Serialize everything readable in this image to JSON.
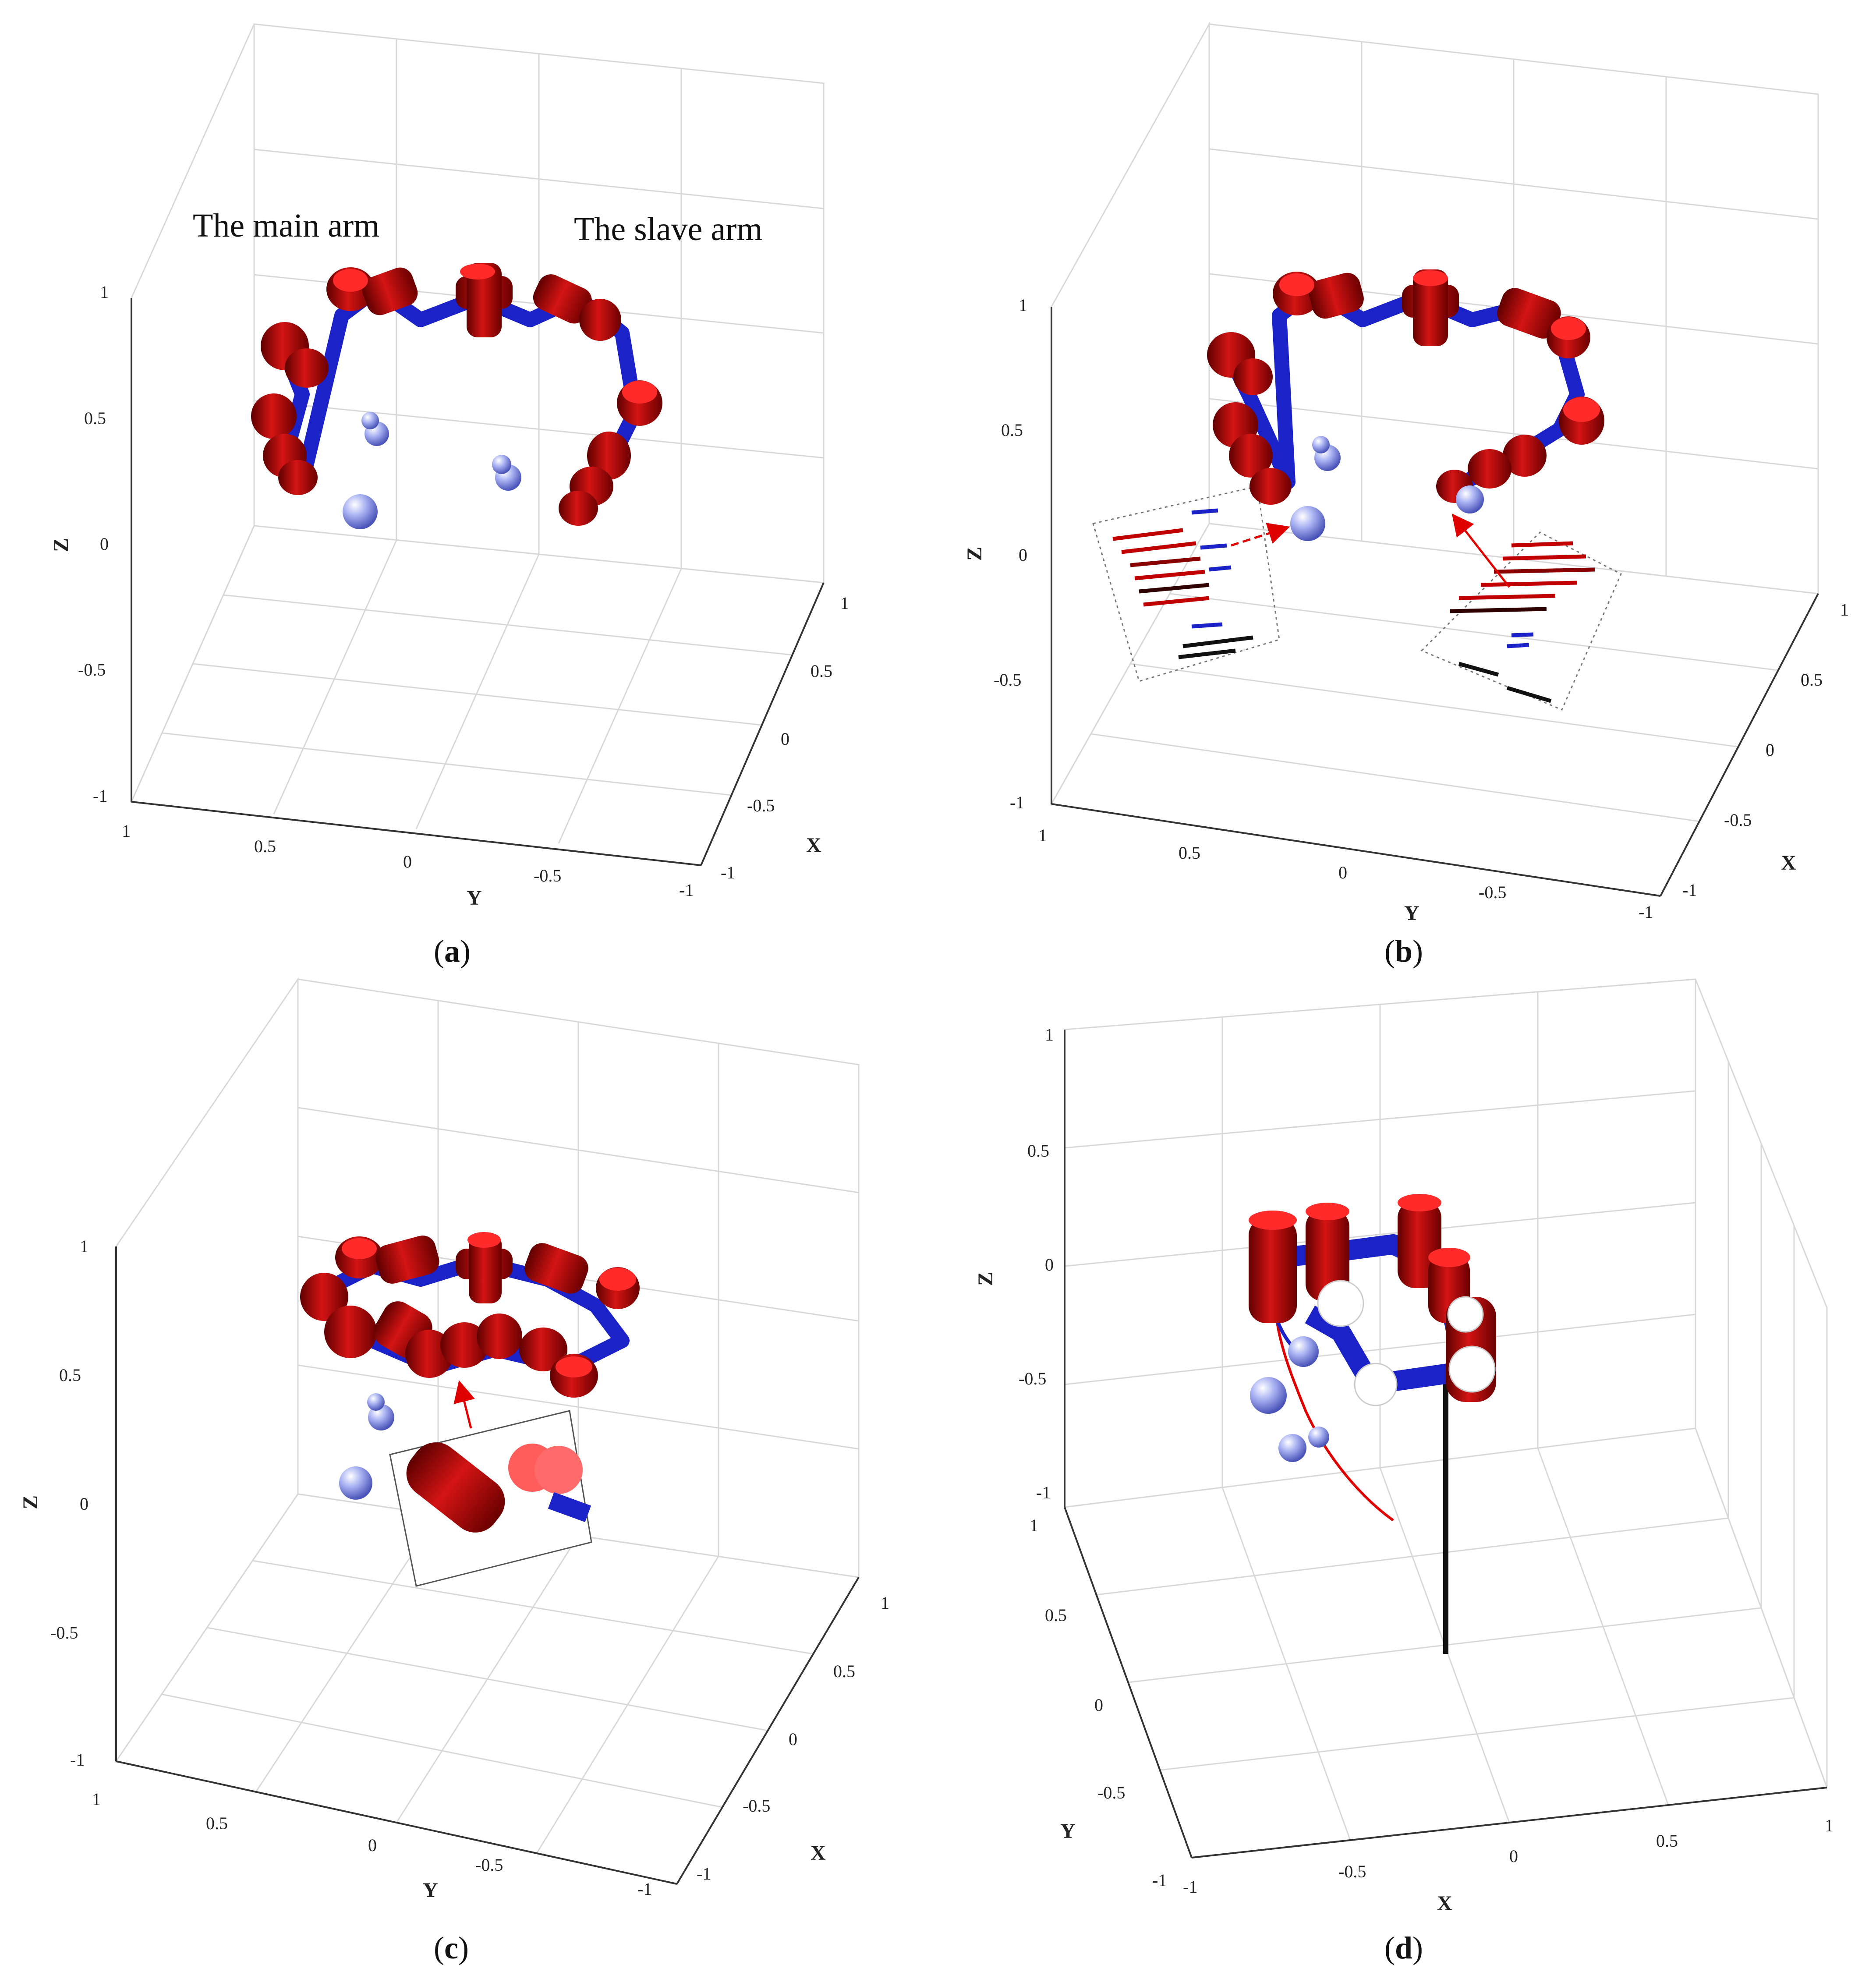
{
  "panels": [
    {
      "id": "a",
      "caption_letter": "a",
      "annotations": [
        "The main arm",
        "The slave arm"
      ],
      "axes": {
        "xlabel": "X",
        "ylabel": "Y",
        "zlabel": "Z",
        "x_ticks": [
          "1",
          "0.5",
          "0",
          "-0.5",
          "-1"
        ],
        "y_ticks": [
          "1",
          "0.5",
          "0",
          "-0.5",
          "-1"
        ],
        "z_ticks": [
          "1",
          "0.5",
          "0",
          "-0.5",
          "-1"
        ]
      }
    },
    {
      "id": "b",
      "caption_letter": "b",
      "annotations": [],
      "axes": {
        "xlabel": "X",
        "ylabel": "Y",
        "zlabel": "Z",
        "x_ticks": [
          "1",
          "0.5",
          "0",
          "-0.5",
          "-1"
        ],
        "y_ticks": [
          "1",
          "0.5",
          "0",
          "-0.5",
          "-1"
        ],
        "z_ticks": [
          "1",
          "0.5",
          "0",
          "-0.5",
          "-1"
        ]
      }
    },
    {
      "id": "c",
      "caption_letter": "c",
      "annotations": [],
      "axes": {
        "xlabel": "X",
        "ylabel": "Y",
        "zlabel": "Z",
        "x_ticks": [
          "1",
          "0.5",
          "0",
          "-0.5",
          "-1"
        ],
        "y_ticks": [
          "1",
          "0.5",
          "0",
          "-0.5",
          "-1"
        ],
        "z_ticks": [
          "1",
          "0.5",
          "0",
          "-0.5",
          "-1"
        ]
      }
    },
    {
      "id": "d",
      "caption_letter": "d",
      "annotations": [],
      "axes": {
        "xlabel": "X",
        "ylabel": "Y",
        "zlabel": "Z",
        "x_ticks": [
          "-1",
          "-0.5",
          "0",
          "0.5",
          "1"
        ],
        "y_ticks": [
          "1",
          "0.5",
          "0",
          "-0.5",
          "-1"
        ],
        "z_ticks": [
          "1",
          "0.5",
          "0",
          "-0.5",
          "-1"
        ]
      }
    }
  ],
  "colors": {
    "joint_red": "#b00000",
    "joint_highlight": "#ff3030",
    "link_blue": "#1a22c8",
    "target_sphere": "#8f9ae8",
    "arrow_red": "#e00000",
    "trajectory_red": "#e00000",
    "grid": "#d8d8d8"
  }
}
